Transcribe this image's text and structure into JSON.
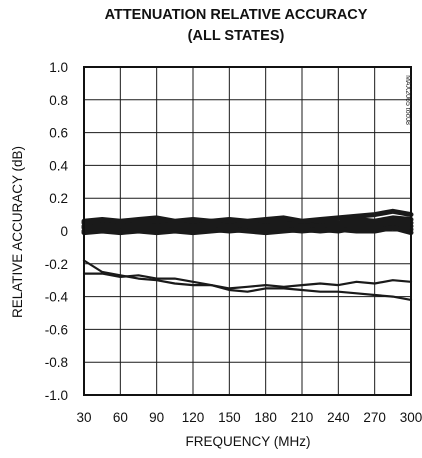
{
  "chart_data": {
    "type": "line",
    "title_line1": "ATTENUATION RELATIVE ACCURACY",
    "title_line2": "(ALL STATES)",
    "xlabel": "FREQUENCY (MHz)",
    "ylabel": "RELATIVE ACCURACY (dB)",
    "side_label": "MAX2065 toc08",
    "xlim": [
      30,
      300
    ],
    "ylim": [
      -1.0,
      1.0
    ],
    "grid": true,
    "x_ticks": [
      30,
      60,
      90,
      120,
      150,
      180,
      210,
      240,
      270,
      300
    ],
    "y_ticks": [
      {
        "value": 1.0,
        "label": "1.0"
      },
      {
        "value": 0.8,
        "label": "0.8"
      },
      {
        "value": 0.6,
        "label": "0.6"
      },
      {
        "value": 0.4,
        "label": "0.4"
      },
      {
        "value": 0.2,
        "label": "0.2"
      },
      {
        "value": 0,
        "label": "0"
      },
      {
        "value": -0.2,
        "label": "-0.2"
      },
      {
        "value": -0.4,
        "label": "-0.4"
      },
      {
        "value": -0.6,
        "label": "-0.6"
      },
      {
        "value": -0.8,
        "label": "-0.8"
      },
      {
        "value": -1.0,
        "label": "-1.0"
      }
    ],
    "x": [
      30,
      45,
      60,
      75,
      90,
      105,
      120,
      135,
      150,
      165,
      180,
      195,
      210,
      225,
      240,
      255,
      270,
      285,
      300
    ],
    "series": [
      {
        "values": [
          0.05,
          0.06,
          0.04,
          0.05,
          0.06,
          0.05,
          0.04,
          0.06,
          0.05,
          0.04,
          0.05,
          0.06,
          0.05,
          0.06,
          0.05,
          0.07,
          0.06,
          0.08,
          0.07
        ]
      },
      {
        "values": [
          0.03,
          0.04,
          0.03,
          0.04,
          0.03,
          0.04,
          0.03,
          0.04,
          0.03,
          0.04,
          0.03,
          0.04,
          0.04,
          0.03,
          0.04,
          0.05,
          0.04,
          0.06,
          0.05
        ]
      },
      {
        "values": [
          0.02,
          0.03,
          0.02,
          0.02,
          0.03,
          0.02,
          0.03,
          0.02,
          0.03,
          0.02,
          0.03,
          0.02,
          0.03,
          0.03,
          0.02,
          0.04,
          0.03,
          0.04,
          0.03
        ]
      },
      {
        "values": [
          0.0,
          0.01,
          0.0,
          0.01,
          0.0,
          0.01,
          0.0,
          0.01,
          0.0,
          0.01,
          0.0,
          0.01,
          0.0,
          0.01,
          0.0,
          0.02,
          0.01,
          0.02,
          0.01
        ]
      },
      {
        "values": [
          0.06,
          0.07,
          0.06,
          0.07,
          0.08,
          0.06,
          0.07,
          0.06,
          0.07,
          0.06,
          0.07,
          0.08,
          0.06,
          0.07,
          0.08,
          0.09,
          0.1,
          0.12,
          0.1
        ]
      },
      {
        "values": [
          -0.01,
          0.0,
          -0.01,
          0.0,
          -0.01,
          0.0,
          -0.01,
          0.0,
          0.01,
          0.0,
          -0.01,
          0.0,
          0.01,
          0.0,
          0.01,
          0.0,
          0.0,
          0.02,
          -0.01
        ]
      },
      {
        "values": [
          -0.18,
          -0.25,
          -0.27,
          -0.29,
          -0.3,
          -0.32,
          -0.33,
          -0.33,
          -0.35,
          -0.34,
          -0.33,
          -0.34,
          -0.33,
          -0.32,
          -0.33,
          -0.31,
          -0.32,
          -0.3,
          -0.31
        ]
      },
      {
        "values": [
          -0.26,
          -0.26,
          -0.28,
          -0.27,
          -0.29,
          -0.29,
          -0.31,
          -0.33,
          -0.36,
          -0.37,
          -0.35,
          -0.35,
          -0.36,
          -0.37,
          -0.37,
          -0.38,
          -0.39,
          -0.4,
          -0.42
        ]
      }
    ]
  }
}
